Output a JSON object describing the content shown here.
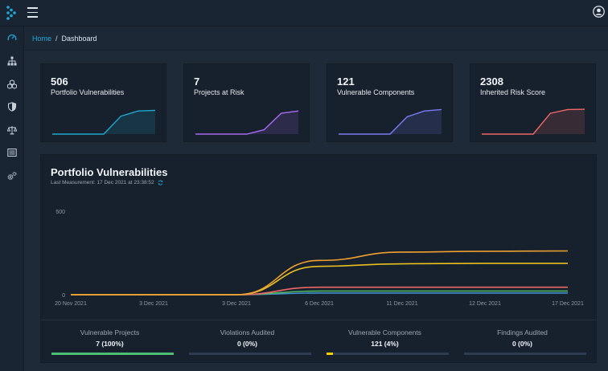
{
  "topbar": {
    "logo_icon": "dependency-track-logo",
    "menu_icon": "hamburger-icon",
    "avatar_icon": "user-avatar-icon"
  },
  "sidebar": {
    "items": [
      {
        "icon": "dashboard-gauge-icon",
        "active": true
      },
      {
        "icon": "projects-sitemap-icon",
        "active": false
      },
      {
        "icon": "components-cubes-icon",
        "active": false
      },
      {
        "icon": "vulnerabilities-shield-icon",
        "active": false
      },
      {
        "icon": "licenses-balance-icon",
        "active": false
      },
      {
        "icon": "policy-list-icon",
        "active": false
      },
      {
        "icon": "admin-cogs-icon",
        "active": false
      }
    ]
  },
  "breadcrumb": {
    "home": "Home",
    "separator": "/",
    "current": "Dashboard"
  },
  "cards": [
    {
      "value": "506",
      "label": "Portfolio Vulnerabilities",
      "color": "#1fa8d0",
      "spark": [
        0,
        0,
        0,
        0,
        0.62,
        0.8,
        0.82
      ]
    },
    {
      "value": "7",
      "label": "Projects at Risk",
      "color": "#a66bf0",
      "spark": [
        0,
        0,
        0,
        0,
        0.15,
        0.72,
        0.8
      ]
    },
    {
      "value": "121",
      "label": "Vulnerable Components",
      "color": "#7b7bf2",
      "spark": [
        0,
        0,
        0,
        0,
        0.6,
        0.8,
        0.85
      ]
    },
    {
      "value": "2308",
      "label": "Inherited Risk Score",
      "color": "#f06868",
      "spark": [
        0,
        0,
        0,
        0,
        0.72,
        0.85,
        0.86
      ]
    }
  ],
  "panel": {
    "title": "Portfolio Vulnerabilities",
    "subtitle": "Last Measurement: 17 Dec 2021 at 23:38:52",
    "refresh_icon": "refresh-icon"
  },
  "chart_data": {
    "type": "line",
    "x": [
      "20 Nov 2021",
      "3 Dec 2021",
      "3 Dec 2021",
      "6 Dec 2021",
      "11 Dec 2021",
      "12 Dec 2021",
      "17 Dec 2021"
    ],
    "ylim": [
      0,
      500
    ],
    "yticks": [
      "500",
      "0"
    ],
    "grid": false,
    "series": [
      {
        "color": "#f0a030",
        "values": [
          0,
          0,
          0,
          205,
          255,
          260,
          262
        ]
      },
      {
        "color": "#e8c020",
        "values": [
          0,
          0,
          0,
          170,
          185,
          188,
          188
        ]
      },
      {
        "color": "#f06868",
        "values": [
          0,
          0,
          0,
          45,
          45,
          45,
          45
        ]
      },
      {
        "color": "#4fb860",
        "values": [
          0,
          0,
          0,
          22,
          22,
          22,
          22
        ]
      },
      {
        "color": "#4090d0",
        "values": [
          0,
          0,
          0,
          10,
          10,
          10,
          10
        ]
      }
    ]
  },
  "stats": [
    {
      "label": "Vulnerable Projects",
      "value": "7 (100%)",
      "percent": 100,
      "color": "#4dbd74"
    },
    {
      "label": "Violations Audited",
      "value": "0 (0%)",
      "percent": 0,
      "color": "#4dbd74"
    },
    {
      "label": "Vulnerable Components",
      "value": "121 (4%)",
      "percent": 4,
      "color": "#f8cb00"
    },
    {
      "label": "Findings Audited",
      "value": "0 (0%)",
      "percent": 0,
      "color": "#4dbd74"
    }
  ]
}
